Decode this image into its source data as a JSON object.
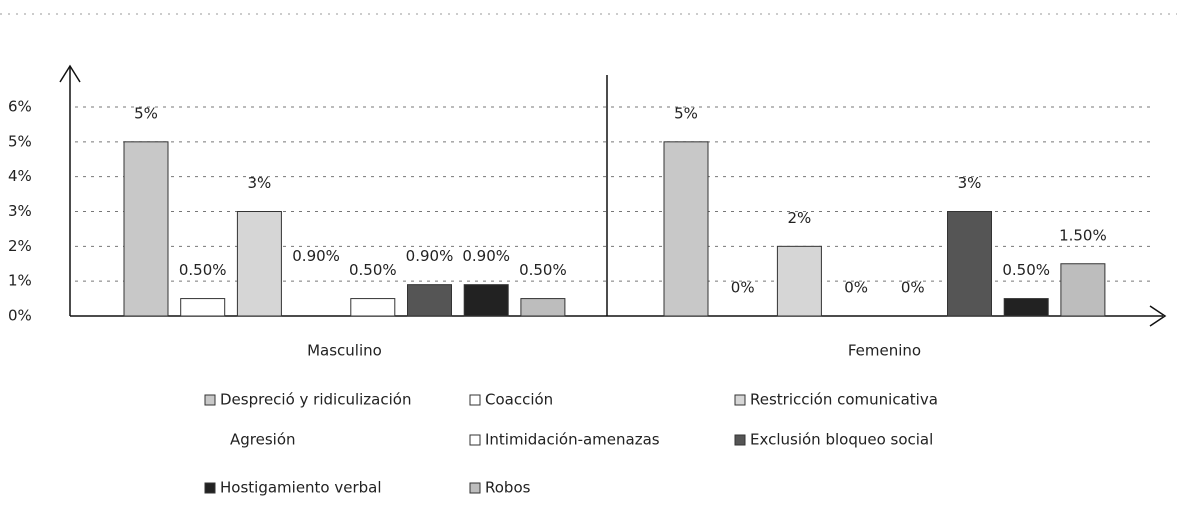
{
  "chart_data": {
    "type": "bar",
    "categories": [
      "Masculino",
      "Femenino"
    ],
    "ylim": [
      0,
      6
    ],
    "yticks": [
      {
        "value": 0,
        "label": "0%"
      },
      {
        "value": 1,
        "label": "1%"
      },
      {
        "value": 2,
        "label": "2%"
      },
      {
        "value": 3,
        "label": "3%"
      },
      {
        "value": 4,
        "label": "4%"
      },
      {
        "value": 5,
        "label": "5%"
      },
      {
        "value": 6,
        "label": "6%"
      }
    ],
    "grid": true,
    "series": [
      {
        "name": "Despreció y ridiculización",
        "color": "#c8c8c8",
        "values": [
          5,
          5
        ],
        "value_labels": [
          "5%",
          "5%"
        ]
      },
      {
        "name": "Coacción",
        "color": "#ffffff",
        "values": [
          0.5,
          0
        ],
        "value_labels": [
          "0.50%",
          "0%"
        ]
      },
      {
        "name": "Restricción comunicativa",
        "color": "#d6d6d6",
        "values": [
          3,
          2
        ],
        "value_labels": [
          "3%",
          "2%"
        ]
      },
      {
        "name": "Agresión",
        "color": "none",
        "values": [
          0.9,
          0
        ],
        "value_labels": [
          "0.90%",
          "0%"
        ]
      },
      {
        "name": "Intimidación-amenazas",
        "color": "#ffffff",
        "values": [
          0.5,
          0
        ],
        "value_labels": [
          "0.50%",
          "0%"
        ]
      },
      {
        "name": "Exclusión bloqueo social",
        "color": "#555555",
        "values": [
          0.9,
          3
        ],
        "value_labels": [
          "0.90%",
          "3%"
        ]
      },
      {
        "name": "Hostigamiento verbal",
        "color": "#222222",
        "values": [
          0.9,
          0.5
        ],
        "value_labels": [
          "0.90%",
          "0.50%"
        ]
      },
      {
        "name": "Robos",
        "color": "#bdbdbd",
        "values": [
          0.5,
          1.5
        ],
        "value_labels": [
          "0.50%",
          "1.50%"
        ]
      }
    ]
  }
}
